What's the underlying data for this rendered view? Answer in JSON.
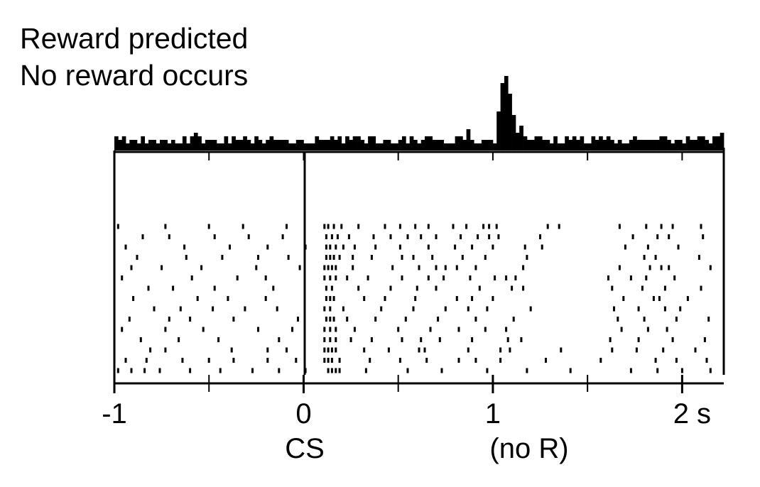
{
  "figure": {
    "title_line1": "Reward predicted",
    "title_line2": "No reward occurs",
    "event_labels": {
      "cs": "CS",
      "no_reward": "(no R)"
    }
  },
  "chart_data": {
    "type": "raster_with_histogram",
    "title": "Reward predicted\nNo reward occurs",
    "xlabel": "",
    "ylabel": "",
    "xlim": [
      -1,
      2.22
    ],
    "x_ticks": [
      -1,
      0,
      1,
      2
    ],
    "x_tick_labels": [
      "-1",
      "0",
      "1",
      "2 s"
    ],
    "minor_ticks": [
      -0.5,
      0.5,
      1.5
    ],
    "event_markers": [
      {
        "x": 0,
        "label": "CS"
      },
      {
        "x": 1.15,
        "label": "(no R)"
      }
    ],
    "histogram": {
      "bin_width": 0.02,
      "bin_start": -1.0,
      "baseline_level": 1,
      "counts": [
        3,
        2,
        3,
        1,
        2,
        2,
        1,
        3,
        1,
        2,
        2,
        1,
        2,
        2,
        1,
        2,
        1,
        1,
        3,
        1,
        3,
        4,
        3,
        1,
        2,
        2,
        2,
        1,
        1,
        3,
        1,
        3,
        2,
        2,
        3,
        2,
        1,
        3,
        2,
        1,
        2,
        3,
        2,
        2,
        2,
        2,
        1,
        1,
        2,
        2,
        1,
        1,
        1,
        3,
        2,
        2,
        2,
        3,
        2,
        3,
        1,
        3,
        2,
        3,
        3,
        2,
        1,
        3,
        3,
        1,
        1,
        2,
        2,
        1,
        1,
        2,
        3,
        1,
        3,
        2,
        1,
        2,
        3,
        3,
        2,
        2,
        2,
        1,
        1,
        1,
        3,
        3,
        2,
        5,
        2,
        1,
        1,
        2,
        2,
        2,
        1,
        10,
        18,
        20,
        15,
        9,
        4,
        6,
        3,
        2,
        2,
        3,
        3,
        2,
        2,
        1,
        3,
        1,
        1,
        3,
        2,
        3,
        2,
        3,
        1,
        1,
        3,
        2,
        3,
        2,
        3,
        2,
        1,
        2,
        1,
        1,
        2,
        3,
        2,
        2,
        2,
        2,
        2,
        2,
        3,
        3,
        2,
        1,
        2,
        2,
        1,
        3,
        2,
        2,
        3,
        3,
        2,
        1,
        3,
        3,
        4,
        1,
        3,
        2,
        1,
        2,
        2,
        3,
        4,
        3,
        2,
        1,
        3,
        2,
        3,
        1,
        2,
        3,
        2,
        3,
        2,
        2,
        3,
        2,
        2,
        4,
        1,
        2,
        1,
        2,
        2,
        2,
        2,
        1,
        3,
        1,
        1,
        1,
        0,
        0,
        0,
        0,
        0,
        0,
        0,
        0,
        0,
        1,
        1,
        1,
        1,
        2,
        2,
        1,
        3,
        1,
        3,
        3,
        2,
        4,
        3,
        2,
        3,
        3,
        2,
        1,
        1,
        2,
        2,
        1,
        2,
        2,
        5,
        3,
        1,
        2,
        1,
        2,
        3,
        2,
        3,
        2,
        2,
        1,
        2,
        3,
        1,
        3,
        4,
        3,
        1,
        1,
        1,
        1,
        1,
        1
      ]
    },
    "raster": {
      "trials": [
        [
          -0.98,
          -0.73,
          -0.5,
          -0.32,
          -0.09,
          0.11,
          0.13,
          0.16,
          0.2,
          0.29,
          0.43,
          0.51,
          0.59,
          0.66,
          0.79,
          0.86,
          0.95,
          0.98,
          1.02,
          1.29,
          1.35,
          2.1,
          1.67,
          1.81,
          1.89,
          1.95
        ],
        [
          -0.85,
          -0.71,
          -0.47,
          -0.29,
          -0.11,
          0.12,
          0.15,
          0.18,
          0.24,
          0.37,
          0.46,
          0.55,
          0.62,
          0.7,
          0.83,
          0.92,
          0.98,
          1.03,
          1.25,
          1.74,
          1.87,
          1.93,
          2.11
        ],
        [
          -0.94,
          -0.63,
          -0.39,
          -0.19,
          0.01,
          0.12,
          0.14,
          0.17,
          0.21,
          0.27,
          0.38,
          0.51,
          0.66,
          0.8,
          0.89,
          1.0,
          1.17,
          1.26,
          1.7,
          1.82,
          1.98
        ],
        [
          -0.88,
          -0.62,
          -0.43,
          -0.24,
          -0.08,
          0.12,
          0.14,
          0.16,
          0.19,
          0.26,
          0.36,
          0.52,
          0.58,
          0.68,
          0.84,
          0.96,
          1.18,
          1.8,
          1.86,
          2.09
        ],
        [
          -0.91,
          -0.75,
          -0.54,
          -0.25,
          -0.02,
          0.11,
          0.13,
          0.15,
          0.17,
          0.26,
          0.47,
          0.61,
          0.7,
          0.75,
          0.81,
          0.91,
          1.16,
          1.67,
          1.83,
          1.89,
          1.93,
          2.15
        ],
        [
          -0.96,
          -0.59,
          -0.35,
          -0.2,
          0.11,
          0.14,
          0.17,
          0.23,
          0.34,
          0.52,
          0.66,
          0.74,
          0.88,
          1.01,
          1.07,
          1.12,
          1.61,
          1.73,
          1.81,
          1.96
        ],
        [
          -0.82,
          -0.69,
          -0.47,
          -0.16,
          0.12,
          0.15,
          0.29,
          0.46,
          0.6,
          0.7,
          0.93,
          1.1,
          1.16,
          1.63,
          1.79,
          1.91,
          2.1
        ],
        [
          -0.9,
          -0.56,
          -0.4,
          -0.2,
          0.12,
          0.14,
          0.16,
          0.32,
          0.43,
          0.59,
          0.81,
          0.89,
          1.0,
          1.69,
          1.85,
          1.88,
          2.03
        ],
        [
          -0.79,
          -0.65,
          -0.48,
          -0.31,
          -0.14,
          0.11,
          0.14,
          0.21,
          0.41,
          0.58,
          0.75,
          0.87,
          0.97,
          1.2,
          1.64,
          1.77,
          1.91,
          1.99
        ],
        [
          -0.92,
          -0.71,
          -0.6,
          -0.37,
          -0.03,
          0.12,
          0.14,
          0.16,
          0.23,
          0.38,
          0.54,
          0.71,
          0.91,
          1.11,
          1.66,
          1.8,
          1.97,
          2.14
        ],
        [
          -0.96,
          -0.73,
          -0.53,
          -0.24,
          -0.06,
          0.11,
          0.14,
          0.17,
          0.27,
          0.5,
          0.67,
          0.82,
          0.96,
          1.07,
          1.68,
          1.82,
          1.92
        ],
        [
          -0.86,
          -0.66,
          -0.45,
          -0.13,
          0.11,
          0.14,
          0.17,
          0.25,
          0.36,
          0.52,
          0.62,
          0.72,
          0.89,
          1.08,
          1.15,
          1.62,
          1.77,
          1.95,
          2.12
        ],
        [
          -0.81,
          -0.73,
          -0.38,
          -0.19,
          -0.09,
          0.11,
          0.13,
          0.15,
          0.17,
          0.32,
          0.45,
          0.61,
          0.64,
          0.87,
          1.04,
          1.09,
          1.36,
          1.63,
          1.76,
          1.9,
          2.07
        ],
        [
          -0.94,
          -0.83,
          -0.64,
          -0.5,
          -0.37,
          -0.19,
          -0.04,
          0.11,
          0.13,
          0.15,
          0.19,
          0.35,
          0.51,
          0.65,
          0.82,
          0.91,
          1.04,
          1.28,
          1.57,
          1.86,
          1.97,
          2.13
        ],
        [
          -0.98,
          -0.91,
          -0.84,
          -0.76,
          -0.6,
          -0.44,
          -0.27,
          -0.13,
          0.01,
          0.13,
          0.15,
          0.17,
          0.19,
          0.33,
          0.55,
          0.73,
          0.97,
          1.18,
          1.41,
          1.73,
          1.87,
          2.0,
          2.15
        ]
      ]
    }
  }
}
